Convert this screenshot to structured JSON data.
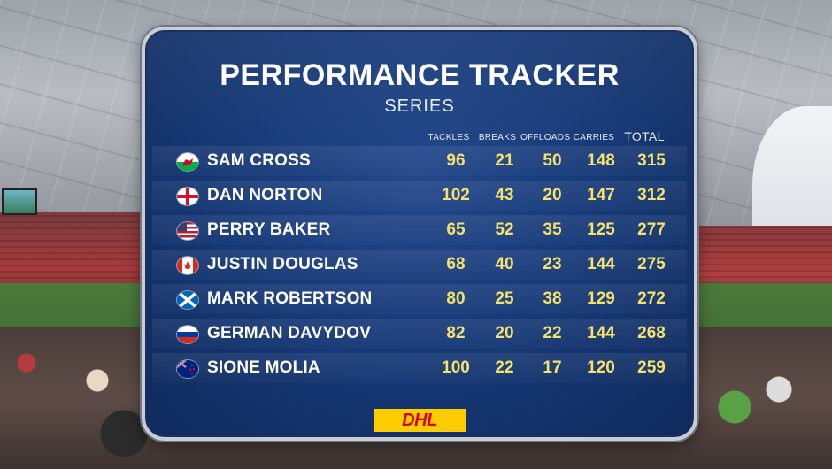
{
  "graphic": {
    "title": "PERFORMANCE TRACKER",
    "subtitle": "SERIES",
    "columns": [
      "TACKLES",
      "BREAKS",
      "OFFLOADS",
      "CARRIES",
      "TOTAL"
    ],
    "rows": [
      {
        "flag": "wales-flag-icon",
        "name": "SAM CROSS",
        "tackles": "96",
        "breaks": "21",
        "offloads": "50",
        "carries": "148",
        "total": "315"
      },
      {
        "flag": "england-flag-icon",
        "name": "DAN NORTON",
        "tackles": "102",
        "breaks": "43",
        "offloads": "20",
        "carries": "147",
        "total": "312"
      },
      {
        "flag": "usa-flag-icon",
        "name": "PERRY BAKER",
        "tackles": "65",
        "breaks": "52",
        "offloads": "35",
        "carries": "125",
        "total": "277"
      },
      {
        "flag": "canada-flag-icon",
        "name": "JUSTIN DOUGLAS",
        "tackles": "68",
        "breaks": "40",
        "offloads": "23",
        "carries": "144",
        "total": "275"
      },
      {
        "flag": "scotland-flag-icon",
        "name": "MARK ROBERTSON",
        "tackles": "80",
        "breaks": "25",
        "offloads": "38",
        "carries": "129",
        "total": "272"
      },
      {
        "flag": "russia-flag-icon",
        "name": "GERMAN DAVYDOV",
        "tackles": "82",
        "breaks": "20",
        "offloads": "22",
        "carries": "144",
        "total": "268"
      },
      {
        "flag": "new-zealand-flag-icon",
        "name": "SIONE MOLIA",
        "tackles": "100",
        "breaks": "22",
        "offloads": "17",
        "carries": "120",
        "total": "259"
      }
    ],
    "sponsor": "DHL"
  },
  "colors": {
    "panel_blue": "#173a78",
    "value_yellow": "#f4e26b",
    "dhl_yellow": "#ffcc00",
    "dhl_red": "#d40511"
  }
}
